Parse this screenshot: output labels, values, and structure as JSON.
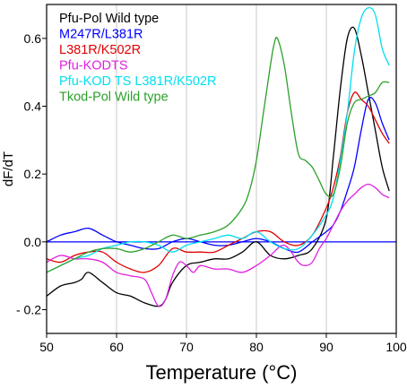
{
  "chart_data": {
    "type": "line",
    "xlabel": "Temperature (°C)",
    "ylabel": "dF/dT",
    "xlim": [
      50,
      100
    ],
    "ylim": [
      -0.27,
      0.7
    ],
    "x_ticks": [
      50,
      60,
      70,
      80,
      90,
      100
    ],
    "x_tick_labels": [
      "50",
      "60",
      "70",
      "80",
      "90",
      "100"
    ],
    "y_ticks": [
      0.6,
      0.4,
      0.2,
      0.0,
      -0.2
    ],
    "y_tick_labels": [
      "0.6",
      "0.4",
      "0.2",
      "0.0",
      "- 0.2"
    ],
    "grid": "vertical",
    "zero_line": {
      "y": 0.0,
      "color": "#0000ff"
    },
    "legend_position": "top-left",
    "series": [
      {
        "name": "Pfu-Pol Wild type",
        "color": "#000000",
        "points": [
          [
            50,
            -0.16
          ],
          [
            52,
            -0.13
          ],
          [
            54,
            -0.12
          ],
          [
            55,
            -0.11
          ],
          [
            56,
            -0.09
          ],
          [
            58,
            -0.12
          ],
          [
            60,
            -0.15
          ],
          [
            62,
            -0.16
          ],
          [
            64,
            -0.18
          ],
          [
            66,
            -0.19
          ],
          [
            67,
            -0.17
          ],
          [
            68,
            -0.12
          ],
          [
            70,
            -0.07
          ],
          [
            72,
            -0.06
          ],
          [
            74,
            -0.05
          ],
          [
            76,
            -0.05
          ],
          [
            78,
            -0.03
          ],
          [
            80,
            0.0
          ],
          [
            82,
            -0.04
          ],
          [
            84,
            -0.05
          ],
          [
            86,
            -0.04
          ],
          [
            88,
            -0.02
          ],
          [
            90,
            0.07
          ],
          [
            91,
            0.25
          ],
          [
            92,
            0.45
          ],
          [
            93,
            0.6
          ],
          [
            94,
            0.63
          ],
          [
            95,
            0.55
          ],
          [
            96,
            0.44
          ],
          [
            97,
            0.33
          ],
          [
            98,
            0.22
          ],
          [
            99,
            0.15
          ]
        ]
      },
      {
        "name": "M247R/L381R",
        "color": "#0000ff",
        "points": [
          [
            50,
            0.0
          ],
          [
            52,
            0.02
          ],
          [
            54,
            0.03
          ],
          [
            56,
            0.04
          ],
          [
            58,
            0.02
          ],
          [
            60,
            0.0
          ],
          [
            62,
            -0.01
          ],
          [
            64,
            -0.02
          ],
          [
            66,
            -0.02
          ],
          [
            68,
            0.0
          ],
          [
            70,
            0.01
          ],
          [
            72,
            0.0
          ],
          [
            74,
            -0.01
          ],
          [
            76,
            -0.01
          ],
          [
            78,
            0.0
          ],
          [
            80,
            0.01
          ],
          [
            82,
            0.0
          ],
          [
            84,
            -0.02
          ],
          [
            86,
            -0.03
          ],
          [
            88,
            0.0
          ],
          [
            90,
            0.03
          ],
          [
            91,
            0.05
          ],
          [
            92,
            0.09
          ],
          [
            93,
            0.15
          ],
          [
            94,
            0.22
          ],
          [
            95,
            0.33
          ],
          [
            96,
            0.42
          ],
          [
            97,
            0.41
          ],
          [
            98,
            0.35
          ],
          [
            99,
            0.3
          ]
        ]
      },
      {
        "name": "L381R/K502R",
        "color": "#e00000",
        "points": [
          [
            50,
            -0.05
          ],
          [
            52,
            -0.06
          ],
          [
            54,
            -0.04
          ],
          [
            56,
            -0.03
          ],
          [
            58,
            -0.03
          ],
          [
            60,
            -0.06
          ],
          [
            62,
            -0.08
          ],
          [
            64,
            -0.09
          ],
          [
            66,
            -0.07
          ],
          [
            68,
            -0.02
          ],
          [
            70,
            -0.03
          ],
          [
            72,
            -0.03
          ],
          [
            74,
            -0.03
          ],
          [
            76,
            -0.01
          ],
          [
            78,
            0.01
          ],
          [
            80,
            0.03
          ],
          [
            82,
            0.03
          ],
          [
            84,
            0.0
          ],
          [
            86,
            -0.01
          ],
          [
            88,
            0.02
          ],
          [
            90,
            0.1
          ],
          [
            91,
            0.16
          ],
          [
            92,
            0.25
          ],
          [
            93,
            0.38
          ],
          [
            94,
            0.44
          ],
          [
            95,
            0.42
          ],
          [
            96,
            0.4
          ],
          [
            97,
            0.36
          ],
          [
            98,
            0.32
          ],
          [
            99,
            0.29
          ]
        ]
      },
      {
        "name": "Pfu-KODTS",
        "color": "#e020e0",
        "points": [
          [
            50,
            -0.06
          ],
          [
            52,
            -0.04
          ],
          [
            54,
            -0.05
          ],
          [
            56,
            -0.05
          ],
          [
            58,
            -0.06
          ],
          [
            60,
            -0.09
          ],
          [
            62,
            -0.1
          ],
          [
            64,
            -0.11
          ],
          [
            65,
            -0.15
          ],
          [
            66,
            -0.19
          ],
          [
            67,
            -0.17
          ],
          [
            68,
            -0.1
          ],
          [
            69,
            -0.06
          ],
          [
            70,
            -0.07
          ],
          [
            71,
            -0.09
          ],
          [
            72,
            -0.07
          ],
          [
            74,
            -0.08
          ],
          [
            76,
            -0.08
          ],
          [
            78,
            -0.09
          ],
          [
            80,
            -0.07
          ],
          [
            82,
            -0.04
          ],
          [
            84,
            -0.01
          ],
          [
            86,
            -0.06
          ],
          [
            87,
            -0.07
          ],
          [
            88,
            -0.06
          ],
          [
            89,
            -0.02
          ],
          [
            90,
            0.01
          ],
          [
            91,
            0.05
          ],
          [
            92,
            0.09
          ],
          [
            93,
            0.12
          ],
          [
            94,
            0.14
          ],
          [
            95,
            0.16
          ],
          [
            96,
            0.17
          ],
          [
            97,
            0.16
          ],
          [
            98,
            0.14
          ],
          [
            99,
            0.13
          ]
        ]
      },
      {
        "name": "Pfu-KOD TS L381R/K502R",
        "color": "#00e0f0",
        "points": [
          [
            50,
            -0.09
          ],
          [
            52,
            -0.07
          ],
          [
            54,
            -0.05
          ],
          [
            56,
            -0.04
          ],
          [
            58,
            -0.02
          ],
          [
            60,
            -0.01
          ],
          [
            62,
            0.0
          ],
          [
            64,
            0.0
          ],
          [
            66,
            -0.01
          ],
          [
            68,
            -0.03
          ],
          [
            70,
            -0.01
          ],
          [
            72,
            0.0
          ],
          [
            74,
            0.01
          ],
          [
            76,
            0.02
          ],
          [
            78,
            0.01
          ],
          [
            80,
            0.03
          ],
          [
            82,
            0.0
          ],
          [
            84,
            -0.02
          ],
          [
            86,
            -0.02
          ],
          [
            88,
            0.02
          ],
          [
            90,
            0.08
          ],
          [
            91,
            0.13
          ],
          [
            92,
            0.24
          ],
          [
            93,
            0.38
          ],
          [
            94,
            0.56
          ],
          [
            95,
            0.66
          ],
          [
            96,
            0.69
          ],
          [
            97,
            0.67
          ],
          [
            98,
            0.57
          ],
          [
            99,
            0.52
          ]
        ]
      },
      {
        "name": "Tkod-Pol Wild type",
        "color": "#2ca02c",
        "points": [
          [
            50,
            -0.09
          ],
          [
            52,
            -0.07
          ],
          [
            54,
            -0.05
          ],
          [
            56,
            -0.03
          ],
          [
            58,
            -0.02
          ],
          [
            60,
            -0.02
          ],
          [
            62,
            -0.03
          ],
          [
            64,
            -0.02
          ],
          [
            66,
            0.0
          ],
          [
            68,
            0.02
          ],
          [
            70,
            0.01
          ],
          [
            72,
            0.02
          ],
          [
            74,
            0.03
          ],
          [
            76,
            0.05
          ],
          [
            78,
            0.1
          ],
          [
            79,
            0.15
          ],
          [
            80,
            0.24
          ],
          [
            81,
            0.38
          ],
          [
            82,
            0.52
          ],
          [
            82.5,
            0.58
          ],
          [
            83,
            0.6
          ],
          [
            84,
            0.52
          ],
          [
            85,
            0.38
          ],
          [
            86,
            0.26
          ],
          [
            87,
            0.24
          ],
          [
            88,
            0.22
          ],
          [
            89,
            0.18
          ],
          [
            90,
            0.14
          ],
          [
            91,
            0.14
          ],
          [
            92,
            0.22
          ],
          [
            93,
            0.35
          ],
          [
            94,
            0.41
          ],
          [
            95,
            0.42
          ],
          [
            96,
            0.43
          ],
          [
            97,
            0.44
          ],
          [
            98,
            0.47
          ],
          [
            99,
            0.47
          ]
        ]
      }
    ]
  }
}
